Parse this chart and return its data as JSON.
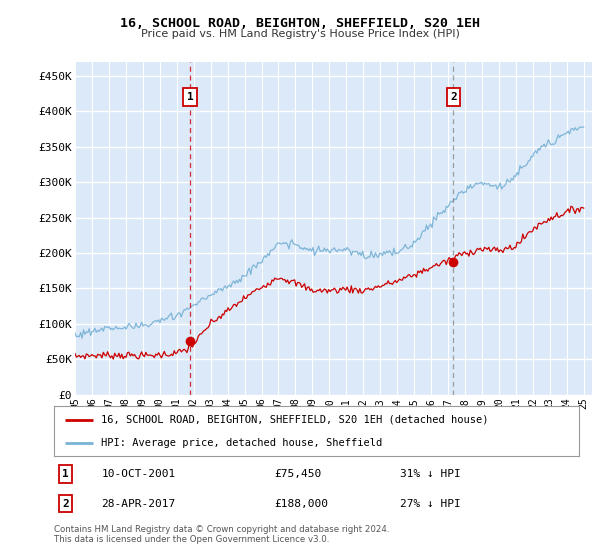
{
  "title": "16, SCHOOL ROAD, BEIGHTON, SHEFFIELD, S20 1EH",
  "subtitle": "Price paid vs. HM Land Registry's House Price Index (HPI)",
  "ylabel_ticks": [
    "£0",
    "£50K",
    "£100K",
    "£150K",
    "£200K",
    "£250K",
    "£300K",
    "£350K",
    "£400K",
    "£450K"
  ],
  "ytick_values": [
    0,
    50000,
    100000,
    150000,
    200000,
    250000,
    300000,
    350000,
    400000,
    450000
  ],
  "ylim": [
    0,
    470000
  ],
  "xlim_start": 1995.0,
  "xlim_end": 2025.5,
  "hpi_color": "#7ab3d6",
  "price_color": "#cc0000",
  "marker1_date": 2001.78,
  "marker1_price": 75450,
  "marker1_label": "10-OCT-2001",
  "marker1_amount": "£75,450",
  "marker1_pct": "31% ↓ HPI",
  "marker2_date": 2017.32,
  "marker2_price": 188000,
  "marker2_label": "28-APR-2017",
  "marker2_amount": "£188,000",
  "marker2_pct": "27% ↓ HPI",
  "legend_line1": "16, SCHOOL ROAD, BEIGHTON, SHEFFIELD, S20 1EH (detached house)",
  "legend_line2": "HPI: Average price, detached house, Sheffield",
  "footer1": "Contains HM Land Registry data © Crown copyright and database right 2024.",
  "footer2": "This data is licensed under the Open Government Licence v3.0.",
  "plot_bg": "#dce9f8",
  "grid_color": "#ffffff",
  "xtick_years": [
    1995,
    1996,
    1997,
    1998,
    1999,
    2000,
    2001,
    2002,
    2003,
    2004,
    2005,
    2006,
    2007,
    2008,
    2009,
    2010,
    2011,
    2012,
    2013,
    2014,
    2015,
    2016,
    2017,
    2018,
    2019,
    2020,
    2021,
    2022,
    2023,
    2024,
    2025
  ],
  "xtick_labels": [
    "95",
    "96",
    "97",
    "98",
    "99",
    "00",
    "01",
    "02",
    "03",
    "04",
    "05",
    "06",
    "07",
    "08",
    "09",
    "10",
    "11",
    "12",
    "13",
    "14",
    "15",
    "16",
    "17",
    "18",
    "19",
    "20",
    "21",
    "22",
    "23",
    "24",
    "25"
  ]
}
